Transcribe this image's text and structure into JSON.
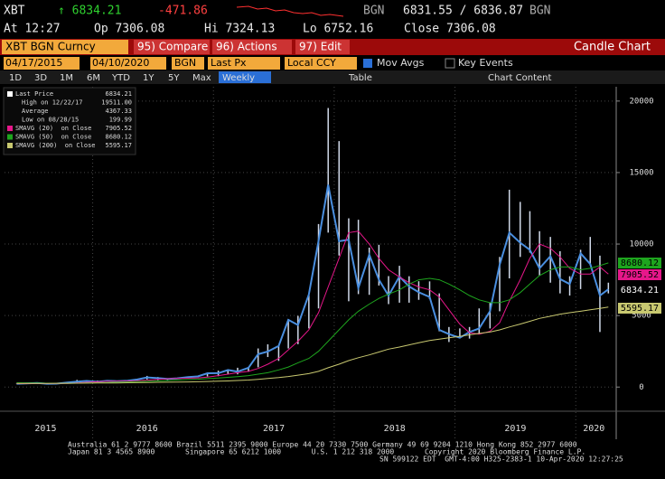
{
  "header": {
    "ticker": "XBT",
    "last": "↑ 6834.21",
    "change": "-471.86",
    "source": "BGN",
    "bidask": "6831.55 / 6836.87",
    "source2": "BGN",
    "at": "At 12:27",
    "open": "Op 7306.08",
    "hi": "Hi 7324.13",
    "lo": "Lo 6752.16",
    "close": "Close 7306.08"
  },
  "toolbar": {
    "security": "XBT BGN Curncy",
    "compare": "95) Compare",
    "actions": "96) Actions",
    "edit": "97) Edit",
    "chart_name": "Candle Chart",
    "start": "04/17/2015",
    "end": "04/10/2020",
    "pricing": "BGN",
    "field": "Last Px",
    "currency": "Local CCY",
    "mov_avgs": "Mov Avgs",
    "key_events": "Key Events",
    "periods": [
      "1D",
      "3D",
      "1M",
      "6M",
      "YTD",
      "1Y",
      "5Y",
      "Max"
    ],
    "frequency": "Weekly",
    "table": "Table",
    "chart_content": "Chart Content"
  },
  "chart_data": {
    "type": "line",
    "x": [
      2015.37,
      2015.45,
      2015.54,
      2015.62,
      2015.7,
      2015.79,
      2015.87,
      2015.95,
      2016.04,
      2016.12,
      2016.2,
      2016.29,
      2016.37,
      2016.45,
      2016.54,
      2016.62,
      2016.7,
      2016.79,
      2016.87,
      2016.95,
      2017.04,
      2017.12,
      2017.2,
      2017.29,
      2017.37,
      2017.45,
      2017.54,
      2017.62,
      2017.7,
      2017.79,
      2017.87,
      2017.95,
      2018.04,
      2018.12,
      2018.2,
      2018.29,
      2018.37,
      2018.45,
      2018.54,
      2018.62,
      2018.7,
      2018.79,
      2018.87,
      2018.95,
      2019.04,
      2019.12,
      2019.2,
      2019.29,
      2019.37,
      2019.45,
      2019.54,
      2019.62,
      2019.7,
      2019.79,
      2019.87,
      2019.95,
      2020.04,
      2020.12,
      2020.2,
      2020.27
    ],
    "xlim": [
      2015.27,
      2020.32
    ],
    "ylim": [
      -1500,
      21000
    ],
    "yticks": [
      0,
      5000,
      10000,
      15000,
      20000
    ],
    "xticks": [
      {
        "value": 2015.61,
        "label": "2015"
      },
      {
        "value": 2016.45,
        "label": "2016"
      },
      {
        "value": 2017.5,
        "label": "2017"
      },
      {
        "value": 2018.5,
        "label": "2018"
      },
      {
        "value": 2019.5,
        "label": "2019"
      },
      {
        "value": 2020.15,
        "label": "2020"
      }
    ],
    "xgrid": [
      2016,
      2017,
      2018,
      2019,
      2020
    ],
    "grid": true,
    "series": [
      {
        "name": "Last Price",
        "color": "#4a8fe0",
        "values": [
          230,
          260,
          285,
          230,
          236,
          315,
          377,
          430,
          370,
          437,
          416,
          448,
          531,
          673,
          624,
          575,
          609,
          700,
          745,
          964,
          970,
          1190,
          1080,
          1350,
          2300,
          2480,
          2875,
          4700,
          4340,
          6470,
          10200,
          14150,
          10200,
          10300,
          6930,
          9250,
          7500,
          6400,
          7730,
          7030,
          6630,
          6300,
          4000,
          3700,
          3450,
          3850,
          4100,
          5300,
          8550,
          10800,
          10100,
          9600,
          8300,
          9150,
          7550,
          7200,
          9350,
          8600,
          6400,
          6834.21
        ],
        "high": [
          247,
          268,
          315,
          285,
          245,
          330,
          500,
          465,
          460,
          445,
          440,
          465,
          550,
          780,
          700,
          620,
          620,
          715,
          755,
          980,
          1150,
          1210,
          1350,
          1400,
          2700,
          2990,
          2920,
          4750,
          4980,
          6470,
          11400,
          19511,
          17200,
          11800,
          11700,
          9750,
          9950,
          7760,
          8480,
          7750,
          7400,
          7390,
          6550,
          4200,
          4100,
          4200,
          5500,
          5900,
          9100,
          13800,
          12950,
          12300,
          10900,
          10500,
          9500,
          7750,
          9600,
          10500,
          9190,
          7300
        ],
        "low": [
          225,
          215,
          245,
          199.99,
          225,
          237,
          310,
          350,
          350,
          365,
          395,
          412,
          440,
          530,
          480,
          470,
          560,
          600,
          690,
          740,
          760,
          920,
          890,
          1070,
          1380,
          2100,
          1830,
          2700,
          3000,
          4100,
          5500,
          10800,
          9200,
          6000,
          6500,
          6450,
          7100,
          5800,
          5900,
          5900,
          6100,
          6150,
          3900,
          3150,
          3400,
          3390,
          3750,
          4100,
          5300,
          7600,
          9100,
          9400,
          7800,
          7300,
          6550,
          6400,
          6850,
          8500,
          3850,
          6550
        ]
      },
      {
        "name": "SMAVG (20)  on Close",
        "color": "#e6178a",
        "values": [
          240,
          240,
          250,
          255,
          250,
          260,
          290,
          330,
          370,
          400,
          410,
          420,
          440,
          480,
          540,
          580,
          600,
          620,
          640,
          700,
          800,
          900,
          1000,
          1100,
          1300,
          1600,
          2000,
          2600,
          3200,
          4000,
          5200,
          7000,
          9000,
          10800,
          10900,
          10000,
          9000,
          8200,
          7700,
          7300,
          7000,
          6800,
          6300,
          5400,
          4400,
          3800,
          3700,
          3900,
          4500,
          6000,
          7500,
          9000,
          10000,
          9700,
          9100,
          8300,
          7900,
          7900,
          8400,
          7905.52
        ]
      },
      {
        "name": "SMAVG (50)  on Close",
        "color": "#1ea51e",
        "values": [
          300,
          290,
          280,
          270,
          265,
          265,
          270,
          285,
          300,
          320,
          340,
          360,
          380,
          400,
          430,
          460,
          490,
          520,
          550,
          590,
          630,
          680,
          730,
          800,
          900,
          1000,
          1200,
          1400,
          1700,
          2000,
          2500,
          3200,
          4000,
          4700,
          5300,
          5800,
          6200,
          6500,
          6800,
          7200,
          7500,
          7600,
          7500,
          7200,
          6800,
          6400,
          6100,
          5900,
          5900,
          6100,
          6600,
          7200,
          7800,
          8200,
          8400,
          8400,
          8200,
          8300,
          8500,
          8680.12
        ]
      },
      {
        "name": "SMAVG (200)  on Close",
        "color": "#c8c870",
        "values": [
          250,
          255,
          258,
          260,
          262,
          265,
          270,
          275,
          280,
          285,
          290,
          300,
          310,
          320,
          330,
          340,
          350,
          360,
          370,
          390,
          410,
          430,
          460,
          490,
          540,
          600,
          660,
          740,
          830,
          940,
          1100,
          1350,
          1600,
          1850,
          2050,
          2250,
          2450,
          2650,
          2800,
          2950,
          3100,
          3250,
          3350,
          3450,
          3550,
          3650,
          3750,
          3850,
          4000,
          4200,
          4400,
          4600,
          4800,
          4950,
          5100,
          5200,
          5300,
          5400,
          5500,
          5595.17
        ]
      }
    ],
    "stats": [
      {
        "label": "High on 12/22/17",
        "value": "19511.00"
      },
      {
        "label": "Average",
        "value": "4367.33"
      },
      {
        "label": "Low on 08/28/15",
        "value": "199.99"
      }
    ]
  },
  "footer": [
    "Australia 61 2 9777 8600 Brazil 5511 2395 9000 Europe 44 20 7330 7500 Germany 49 69 9204 1210 Hong Kong 852 2977 6000",
    "Japan 81 3 4565 8900       Singapore 65 6212 1000       U.S. 1 212 318 2000       Copyright 2020 Bloomberg Finance L.P.",
    "SN 599122 EDT  GMT-4:00 H325-2383-1 10-Apr-2020 12:27:25"
  ]
}
